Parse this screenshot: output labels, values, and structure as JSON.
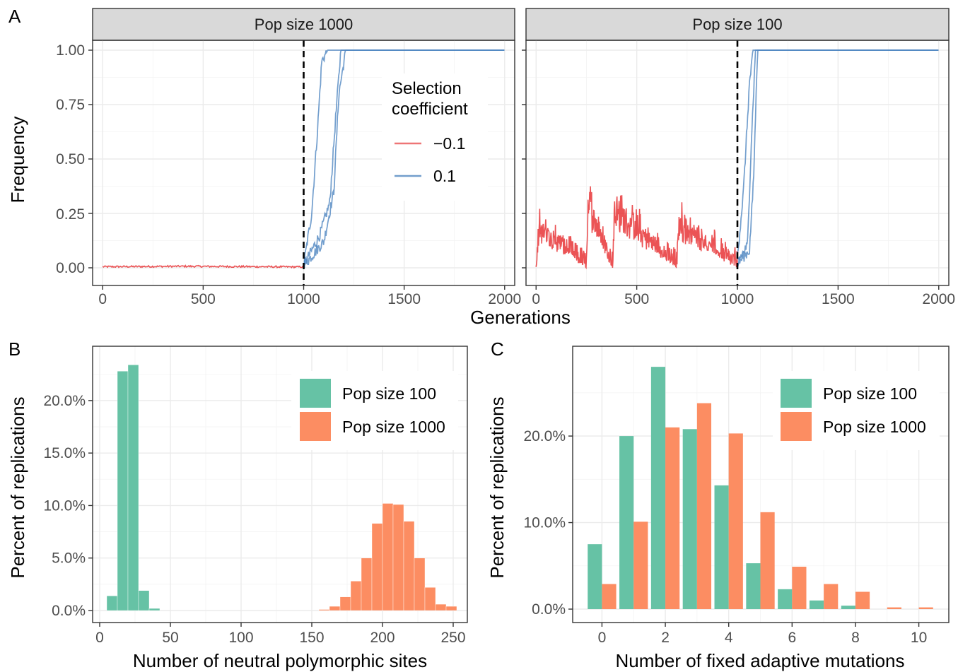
{
  "panel_letters": {
    "a": "A",
    "b": "B",
    "c": "C"
  },
  "colors": {
    "neg": "#e41a1c",
    "pos": "#4f86c0",
    "pop100": "#66c2a5",
    "pop1000": "#fc8d62",
    "strip": "#d9d9d9"
  },
  "chart_data": [
    {
      "type": "line",
      "facets": [
        "Pop size 1000",
        "Pop size 100"
      ],
      "xlabel": "Generations",
      "ylabel": "Frequency",
      "xlim": [
        0,
        2000
      ],
      "ylim": [
        0,
        1
      ],
      "x_ticks": [
        "0",
        "500",
        "1000",
        "1500",
        "2000"
      ],
      "y_ticks": [
        "0.00",
        "0.25",
        "0.50",
        "0.75",
        "1.00"
      ],
      "grid": true,
      "vline": 1000,
      "legend": {
        "title_lines": [
          "Selection",
          "coefficient"
        ],
        "entries": [
          "−0.1",
          "0.1"
        ],
        "placement": "top-right of left panel"
      },
      "series": [
        {
          "name": "−0.1",
          "facet": "Pop size 1000",
          "x": [
            0,
            200,
            400,
            600,
            800,
            1000
          ],
          "y": [
            0.005,
            0.006,
            0.007,
            0.006,
            0.005,
            0.004
          ]
        },
        {
          "name": "0.1",
          "facet": "Pop size 1000",
          "x": [
            1000,
            1040,
            1070,
            1090,
            1120,
            2000
          ],
          "y": [
            0.01,
            0.25,
            0.65,
            0.95,
            1.0,
            1.0
          ]
        },
        {
          "name": "0.1",
          "facet": "Pop size 1000",
          "x": [
            1000,
            1080,
            1130,
            1160,
            1185,
            2000
          ],
          "y": [
            0.01,
            0.15,
            0.3,
            0.7,
            1.0,
            1.0
          ]
        },
        {
          "name": "0.1",
          "facet": "Pop size 1000",
          "x": [
            1000,
            1100,
            1150,
            1175,
            1210,
            2000
          ],
          "y": [
            0.01,
            0.12,
            0.35,
            0.8,
            1.0,
            1.0
          ]
        },
        {
          "name": "−0.1",
          "facet": "Pop size 100",
          "x": [
            0,
            20,
            250,
            260,
            380,
            390,
            700,
            710,
            1000
          ],
          "y": [
            0.0,
            0.18,
            0.0,
            0.31,
            0.0,
            0.27,
            0.0,
            0.2,
            0.0
          ]
        },
        {
          "name": "0.1",
          "facet": "Pop size 100",
          "x": [
            1000,
            1030,
            1060,
            1080,
            2000
          ],
          "y": [
            0.05,
            0.35,
            0.85,
            1.0,
            1.0
          ]
        },
        {
          "name": "0.1",
          "facet": "Pop size 100",
          "x": [
            1000,
            1050,
            1070,
            1090,
            2000
          ],
          "y": [
            0.03,
            0.1,
            0.6,
            1.0,
            1.0
          ]
        },
        {
          "name": "0.1",
          "facet": "Pop size 100",
          "x": [
            1000,
            1060,
            1080,
            1100,
            2000
          ],
          "y": [
            0.02,
            0.08,
            0.4,
            1.0,
            1.0
          ]
        }
      ]
    },
    {
      "type": "bar",
      "xlabel": "Number of neutral polymorphic sites",
      "ylabel": "Percent of replications",
      "xlim": [
        -5,
        260
      ],
      "ylim": [
        0,
        24.5
      ],
      "x_ticks": [
        "0",
        "50",
        "100",
        "150",
        "200",
        "250"
      ],
      "y_ticks": [
        "0.0%",
        "5.0%",
        "10.0%",
        "15.0%",
        "20.0%"
      ],
      "grid": true,
      "legend": {
        "entries": [
          "Pop size 100",
          "Pop size 1000"
        ],
        "placement": "top-right"
      },
      "bin_width": 7.5,
      "series": [
        {
          "name": "Pop size 100",
          "bin_start": [
            5,
            12.5,
            20,
            27.5,
            35
          ],
          "values": [
            1.4,
            22.8,
            23.4,
            1.9,
            0.2
          ]
        },
        {
          "name": "Pop size 1000",
          "bin_start": [
            155,
            162.5,
            170,
            177.5,
            185,
            192.5,
            200,
            207.5,
            215,
            222.5,
            230,
            237.5,
            245
          ],
          "values": [
            0.1,
            0.4,
            1.3,
            2.8,
            5.0,
            8.3,
            10.2,
            10.1,
            8.5,
            5.0,
            2.2,
            0.6,
            0.4
          ]
        }
      ]
    },
    {
      "type": "bar",
      "xlabel": "Number of fixed adaptive mutations",
      "ylabel": "Percent of replications",
      "xlim": [
        -0.5,
        10.5
      ],
      "ylim": [
        0,
        28.5
      ],
      "x_ticks": [
        "0",
        "2",
        "4",
        "6",
        "8",
        "10"
      ],
      "y_ticks": [
        "0.0%",
        "10.0%",
        "20.0%"
      ],
      "grid": true,
      "legend": {
        "entries": [
          "Pop size 100",
          "Pop size 1000"
        ],
        "placement": "top-right"
      },
      "categories": [
        0,
        1,
        2,
        3,
        4,
        5,
        6,
        7,
        8,
        9,
        10
      ],
      "series": [
        {
          "name": "Pop size 100",
          "values": [
            7.5,
            20.0,
            28.0,
            20.8,
            14.3,
            5.3,
            2.3,
            1.0,
            0.4,
            0.0,
            0.0
          ]
        },
        {
          "name": "Pop size 1000",
          "values": [
            2.9,
            10.1,
            21.0,
            23.8,
            20.3,
            11.2,
            4.9,
            2.9,
            2.0,
            0.2,
            0.2
          ]
        }
      ]
    }
  ]
}
